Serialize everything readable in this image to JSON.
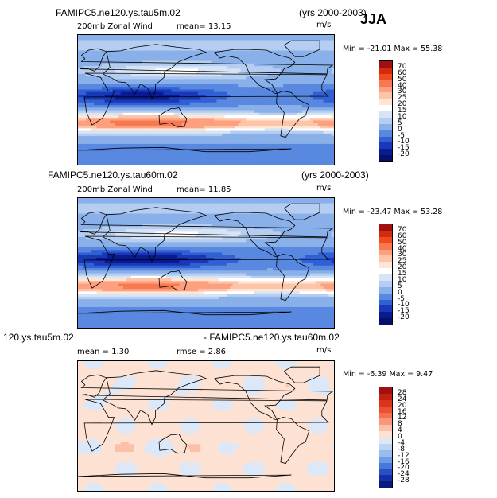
{
  "season": "JJA",
  "panels": [
    {
      "title_left": "FAMIPC5.ne120.ys.tau5m.02",
      "title_right": "(yrs 2000-2003)",
      "sub_left": "200mb Zonal Wind",
      "sub_mean": "mean=  13.15",
      "sub_units": "m/s",
      "minmax": "Min = -21.01 Max =  55.38",
      "levels": [
        "70",
        "60",
        "50",
        "40",
        "30",
        "25",
        "20",
        "15",
        "10",
        "5",
        "0",
        "-5",
        "-10",
        "-15",
        "-20"
      ],
      "colors": [
        "#a01010",
        "#d42a10",
        "#f04a20",
        "#f87850",
        "#fca080",
        "#fdc4a8",
        "#fde6d6",
        "#ffffff",
        "#d6e4f6",
        "#b4cdf0",
        "#8ab0ea",
        "#5888e0",
        "#3060d4",
        "#1838b8",
        "#0a1a90",
        "#05106a"
      ]
    },
    {
      "title_left": "FAMIPC5.ne120.ys.tau60m.02",
      "title_right": "(yrs 2000-2003)",
      "sub_left": "200mb Zonal Wind",
      "sub_mean": "mean=  11.85",
      "sub_units": "m/s",
      "minmax": "Min = -23.47 Max =  53.28",
      "levels": [
        "70",
        "60",
        "50",
        "40",
        "30",
        "25",
        "20",
        "15",
        "10",
        "5",
        "0",
        "-5",
        "-10",
        "-15",
        "-20"
      ],
      "colors": [
        "#a01010",
        "#d42a10",
        "#f04a20",
        "#f87850",
        "#fca080",
        "#fdc4a8",
        "#fde6d6",
        "#ffffff",
        "#d6e4f6",
        "#b4cdf0",
        "#8ab0ea",
        "#5888e0",
        "#3060d4",
        "#1838b8",
        "#0a1a90",
        "#05106a"
      ]
    },
    {
      "title_left": "120.ys.tau5m.02",
      "title_right": "- FAMIPC5.ne120.ys.tau60m.02",
      "sub_left": "mean =   1.30",
      "sub_mean": "rmse =   2.86",
      "sub_units": "m/s",
      "minmax": "Min =  -6.39 Max =   9.47",
      "levels": [
        "28",
        "24",
        "20",
        "16",
        "12",
        "8",
        "4",
        "0",
        "-4",
        "-8",
        "-12",
        "-16",
        "-20",
        "-24",
        "-28"
      ],
      "colors": [
        "#a01010",
        "#c42010",
        "#dc3418",
        "#ec5030",
        "#f47050",
        "#f89878",
        "#fcc0a8",
        "#fde2d4",
        "#dce8f8",
        "#bcd4f2",
        "#98bcec",
        "#6e9ce4",
        "#4678d8",
        "#2850c4",
        "#1430a8",
        "#061a80"
      ]
    }
  ],
  "map_field_type": [
    "jja_u200_a",
    "jja_u200_b",
    "diff"
  ]
}
